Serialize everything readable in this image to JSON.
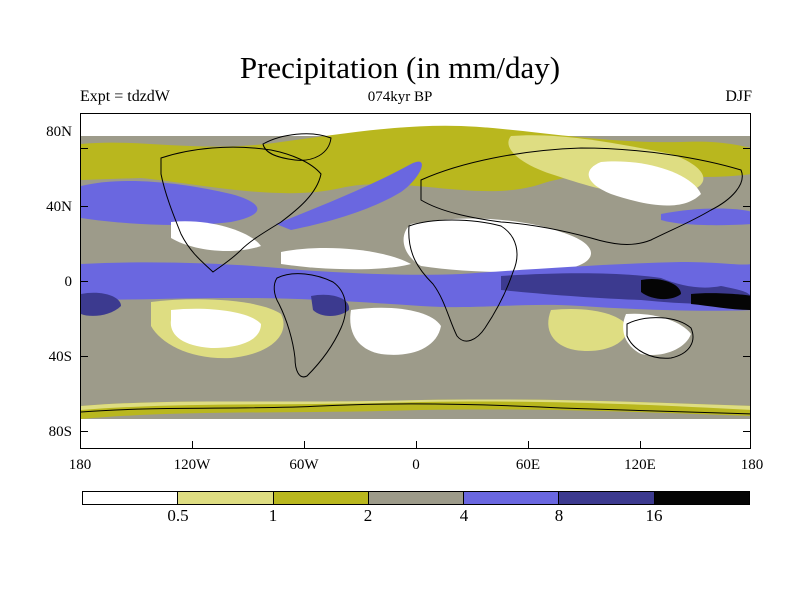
{
  "title": "Precipitation (in mm/day)",
  "subtitle_left": "Expt = tdzdW",
  "subtitle_center": "074kyr BP",
  "subtitle_right": "DJF",
  "lat_labels": [
    "80N",
    "40N",
    "0",
    "40S",
    "80S"
  ],
  "lon_labels": [
    "180",
    "120W",
    "60W",
    "0",
    "60E",
    "120E",
    "180"
  ],
  "colorbar": {
    "colors": [
      "#ffffff",
      "#dedd82",
      "#b9b71e",
      "#9d9b8a",
      "#6a67e0",
      "#3c3a8f",
      "#050505"
    ],
    "labels": [
      "0.5",
      "1",
      "2",
      "4",
      "8",
      "16"
    ]
  },
  "map_data": {
    "type": "filled-contour",
    "variable": "precipitation",
    "units": "mm/day",
    "projection": "cylindrical-equidistant",
    "lon_range": [
      -180,
      180
    ],
    "lat_range": [
      -90,
      90
    ]
  }
}
